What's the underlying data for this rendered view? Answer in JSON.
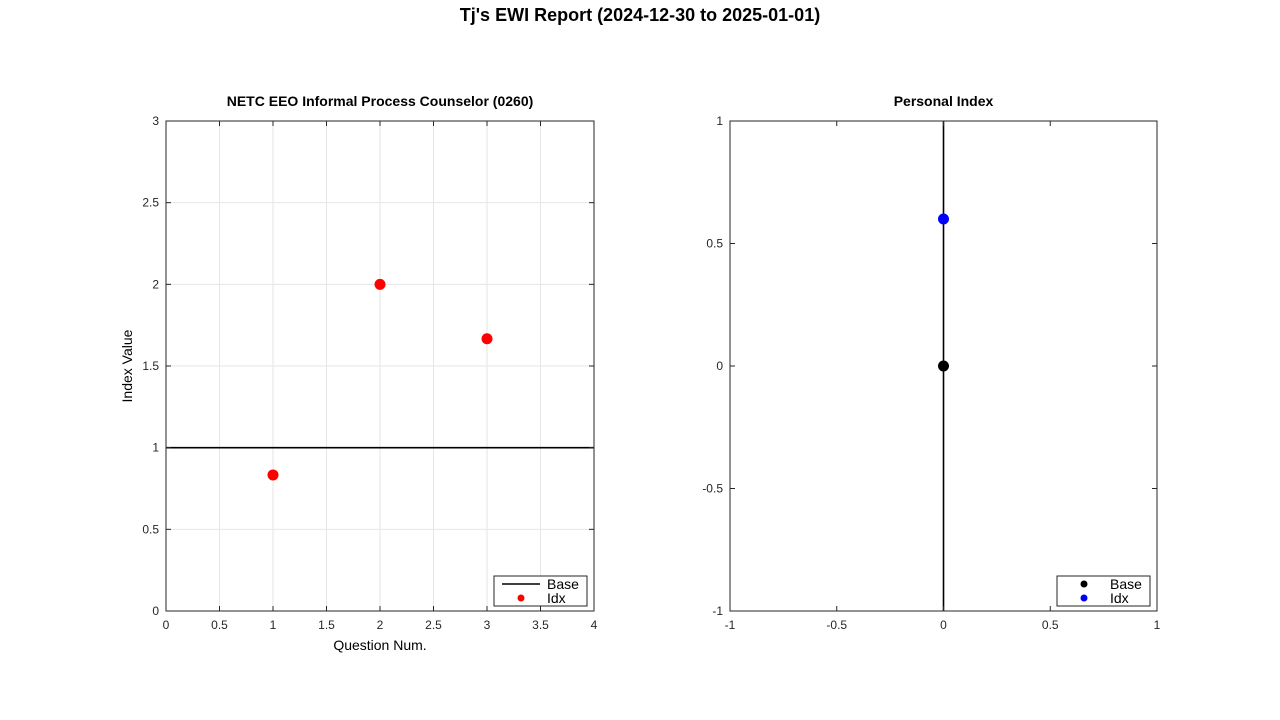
{
  "figure": {
    "title": "Tj's  EWI Report (2024-12-30 to 2025-01-01)"
  },
  "chart_data": [
    {
      "type": "scatter",
      "title": "NETC EEO Informal Process Counselor (0260)",
      "xlabel": "Question Num.",
      "ylabel": "Index Value",
      "xlim": [
        0,
        4
      ],
      "ylim": [
        0,
        3
      ],
      "xticks": [
        "0",
        "0.5",
        "1",
        "1.5",
        "2",
        "2.5",
        "3",
        "3.5",
        "4"
      ],
      "yticks": [
        "0",
        "0.5",
        "1",
        "1.5",
        "2",
        "2.5",
        "3"
      ],
      "grid": true,
      "legend_position": "bottom-right",
      "series": [
        {
          "name": "Base",
          "kind": "hline",
          "y": 1,
          "color": "#000000"
        },
        {
          "name": "Idx",
          "kind": "points",
          "x": [
            1,
            2,
            3
          ],
          "y": [
            0.833,
            2.0,
            1.667
          ],
          "color": "#ff0000"
        }
      ]
    },
    {
      "type": "scatter",
      "title": "Personal Index",
      "xlabel": "",
      "ylabel": "",
      "xlim": [
        -1,
        1
      ],
      "ylim": [
        -1,
        1
      ],
      "xticks": [
        "-1",
        "-0.5",
        "0",
        "0.5",
        "1"
      ],
      "yticks": [
        "-1",
        "-0.5",
        "0",
        "0.5",
        "1"
      ],
      "grid": false,
      "legend_position": "bottom-right",
      "series": [
        {
          "name": "Base",
          "kind": "points",
          "x": [
            0
          ],
          "y": [
            0
          ],
          "color": "#000000"
        },
        {
          "name": "Idx",
          "kind": "points",
          "x": [
            0
          ],
          "y": [
            0.6
          ],
          "color": "#0000ff"
        }
      ],
      "vline_x": 0
    }
  ]
}
